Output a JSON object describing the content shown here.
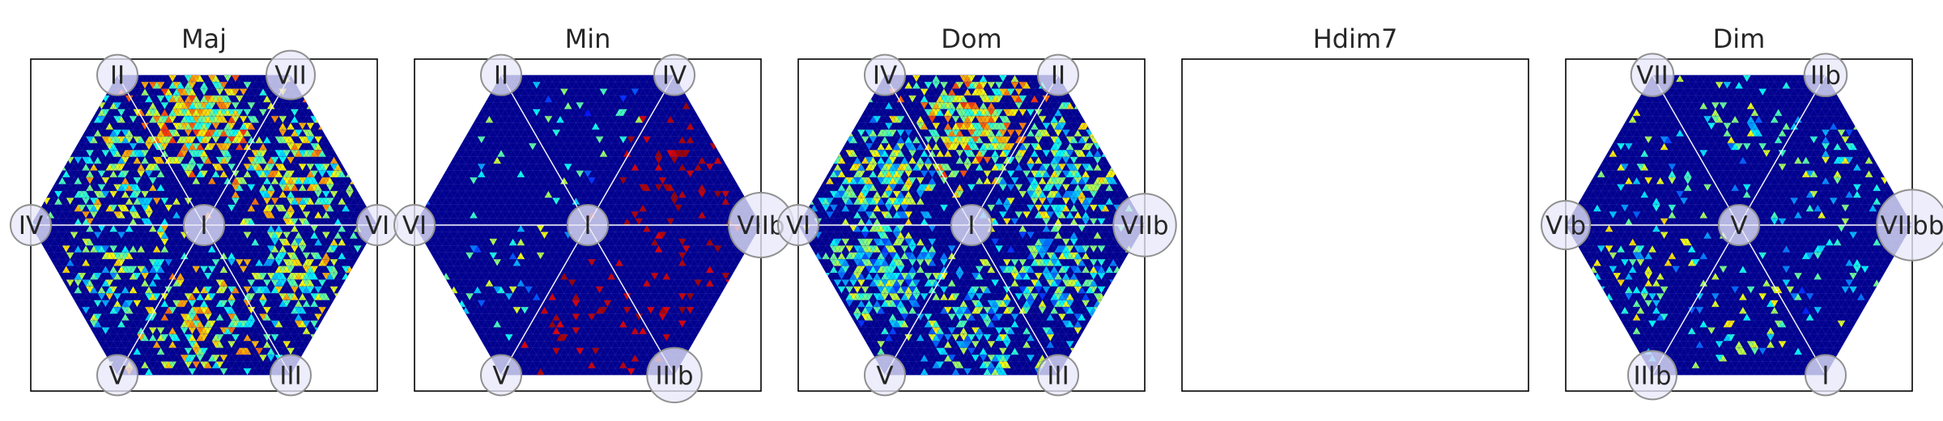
{
  "chart_data": [
    {
      "type": "heatmap",
      "title": "Maj",
      "vertex_labels": {
        "center": "I",
        "top_left": "II",
        "top_right": "VII",
        "left": "IV",
        "right": "VI",
        "bottom_left": "V",
        "bottom_right": "III"
      },
      "label_size": {
        "center": 1,
        "top_left": 1,
        "top_right": 1.2,
        "left": 1,
        "right": 1,
        "bottom_left": 1,
        "bottom_right": 1
      },
      "colormap": "jet",
      "hotspots": [
        {
          "region": "upper",
          "density": 0.9,
          "intensity": 0.6
        },
        {
          "region": "upper_right",
          "density": 0.7,
          "intensity": 0.55
        },
        {
          "region": "upper_left",
          "density": 0.55,
          "intensity": 0.5
        },
        {
          "region": "lower",
          "density": 0.6,
          "intensity": 0.55
        },
        {
          "region": "lower_left",
          "density": 0.45,
          "intensity": 0.45
        },
        {
          "region": "lower_right",
          "density": 0.6,
          "intensity": 0.5
        }
      ]
    },
    {
      "type": "heatmap",
      "title": "Min",
      "vertex_labels": {
        "center": "I",
        "top_left": "II",
        "top_right": "IV",
        "left": "VI",
        "right": "VIIb",
        "bottom_left": "V",
        "bottom_right": "IIIb"
      },
      "label_size": {
        "center": 1,
        "top_left": 1,
        "top_right": 1,
        "left": 1,
        "right": 1.6,
        "bottom_left": 1,
        "bottom_right": 1.35
      },
      "colormap": "jet",
      "hotspots": [
        {
          "region": "upper",
          "density": 0.12,
          "intensity": 0.35
        },
        {
          "region": "upper_right",
          "density": 0.18,
          "intensity": 1.0
        },
        {
          "region": "lower_right",
          "density": 0.14,
          "intensity": 1.0
        },
        {
          "region": "lower",
          "density": 0.14,
          "intensity": 1.0
        },
        {
          "region": "lower_left",
          "density": 0.1,
          "intensity": 0.4
        },
        {
          "region": "upper_left",
          "density": 0.04,
          "intensity": 0.4
        }
      ]
    },
    {
      "type": "heatmap",
      "title": "Dom",
      "vertex_labels": {
        "center": "I",
        "top_left": "IV",
        "top_right": "II",
        "left": "VI",
        "right": "VIIb",
        "bottom_left": "V",
        "bottom_right": "III"
      },
      "label_size": {
        "center": 1,
        "top_left": 1,
        "top_right": 1,
        "left": 1,
        "right": 1.55,
        "bottom_left": 1,
        "bottom_right": 1
      },
      "colormap": "jet",
      "hotspots": [
        {
          "region": "upper",
          "density": 0.9,
          "intensity": 0.6
        },
        {
          "region": "upper_left",
          "density": 0.8,
          "intensity": 0.45
        },
        {
          "region": "upper_right",
          "density": 0.75,
          "intensity": 0.45
        },
        {
          "region": "lower_left",
          "density": 0.75,
          "intensity": 0.4
        },
        {
          "region": "lower_right",
          "density": 0.65,
          "intensity": 0.4
        },
        {
          "region": "lower",
          "density": 0.6,
          "intensity": 0.42
        }
      ]
    },
    {
      "type": "heatmap",
      "title": "Hdim7",
      "empty": true
    },
    {
      "type": "heatmap",
      "title": "Dim",
      "vertex_labels": {
        "center": "V",
        "top_left": "VII",
        "top_right": "IIb",
        "left": "VIb",
        "right": "VIIbb",
        "bottom_left": "IIIb",
        "bottom_right": "I"
      },
      "label_size": {
        "center": 1,
        "top_left": 1.05,
        "top_right": 1.05,
        "left": 1.2,
        "right": 1.75,
        "bottom_left": 1.2,
        "bottom_right": 1
      },
      "colormap": "jet",
      "hotspots": [
        {
          "region": "upper",
          "density": 0.22,
          "intensity": 0.42
        },
        {
          "region": "upper_left",
          "density": 0.14,
          "intensity": 0.42
        },
        {
          "region": "upper_right",
          "density": 0.16,
          "intensity": 0.42
        },
        {
          "region": "lower_left",
          "density": 0.24,
          "intensity": 0.44
        },
        {
          "region": "lower",
          "density": 0.2,
          "intensity": 0.44
        },
        {
          "region": "lower_right",
          "density": 0.15,
          "intensity": 0.38
        }
      ]
    }
  ]
}
